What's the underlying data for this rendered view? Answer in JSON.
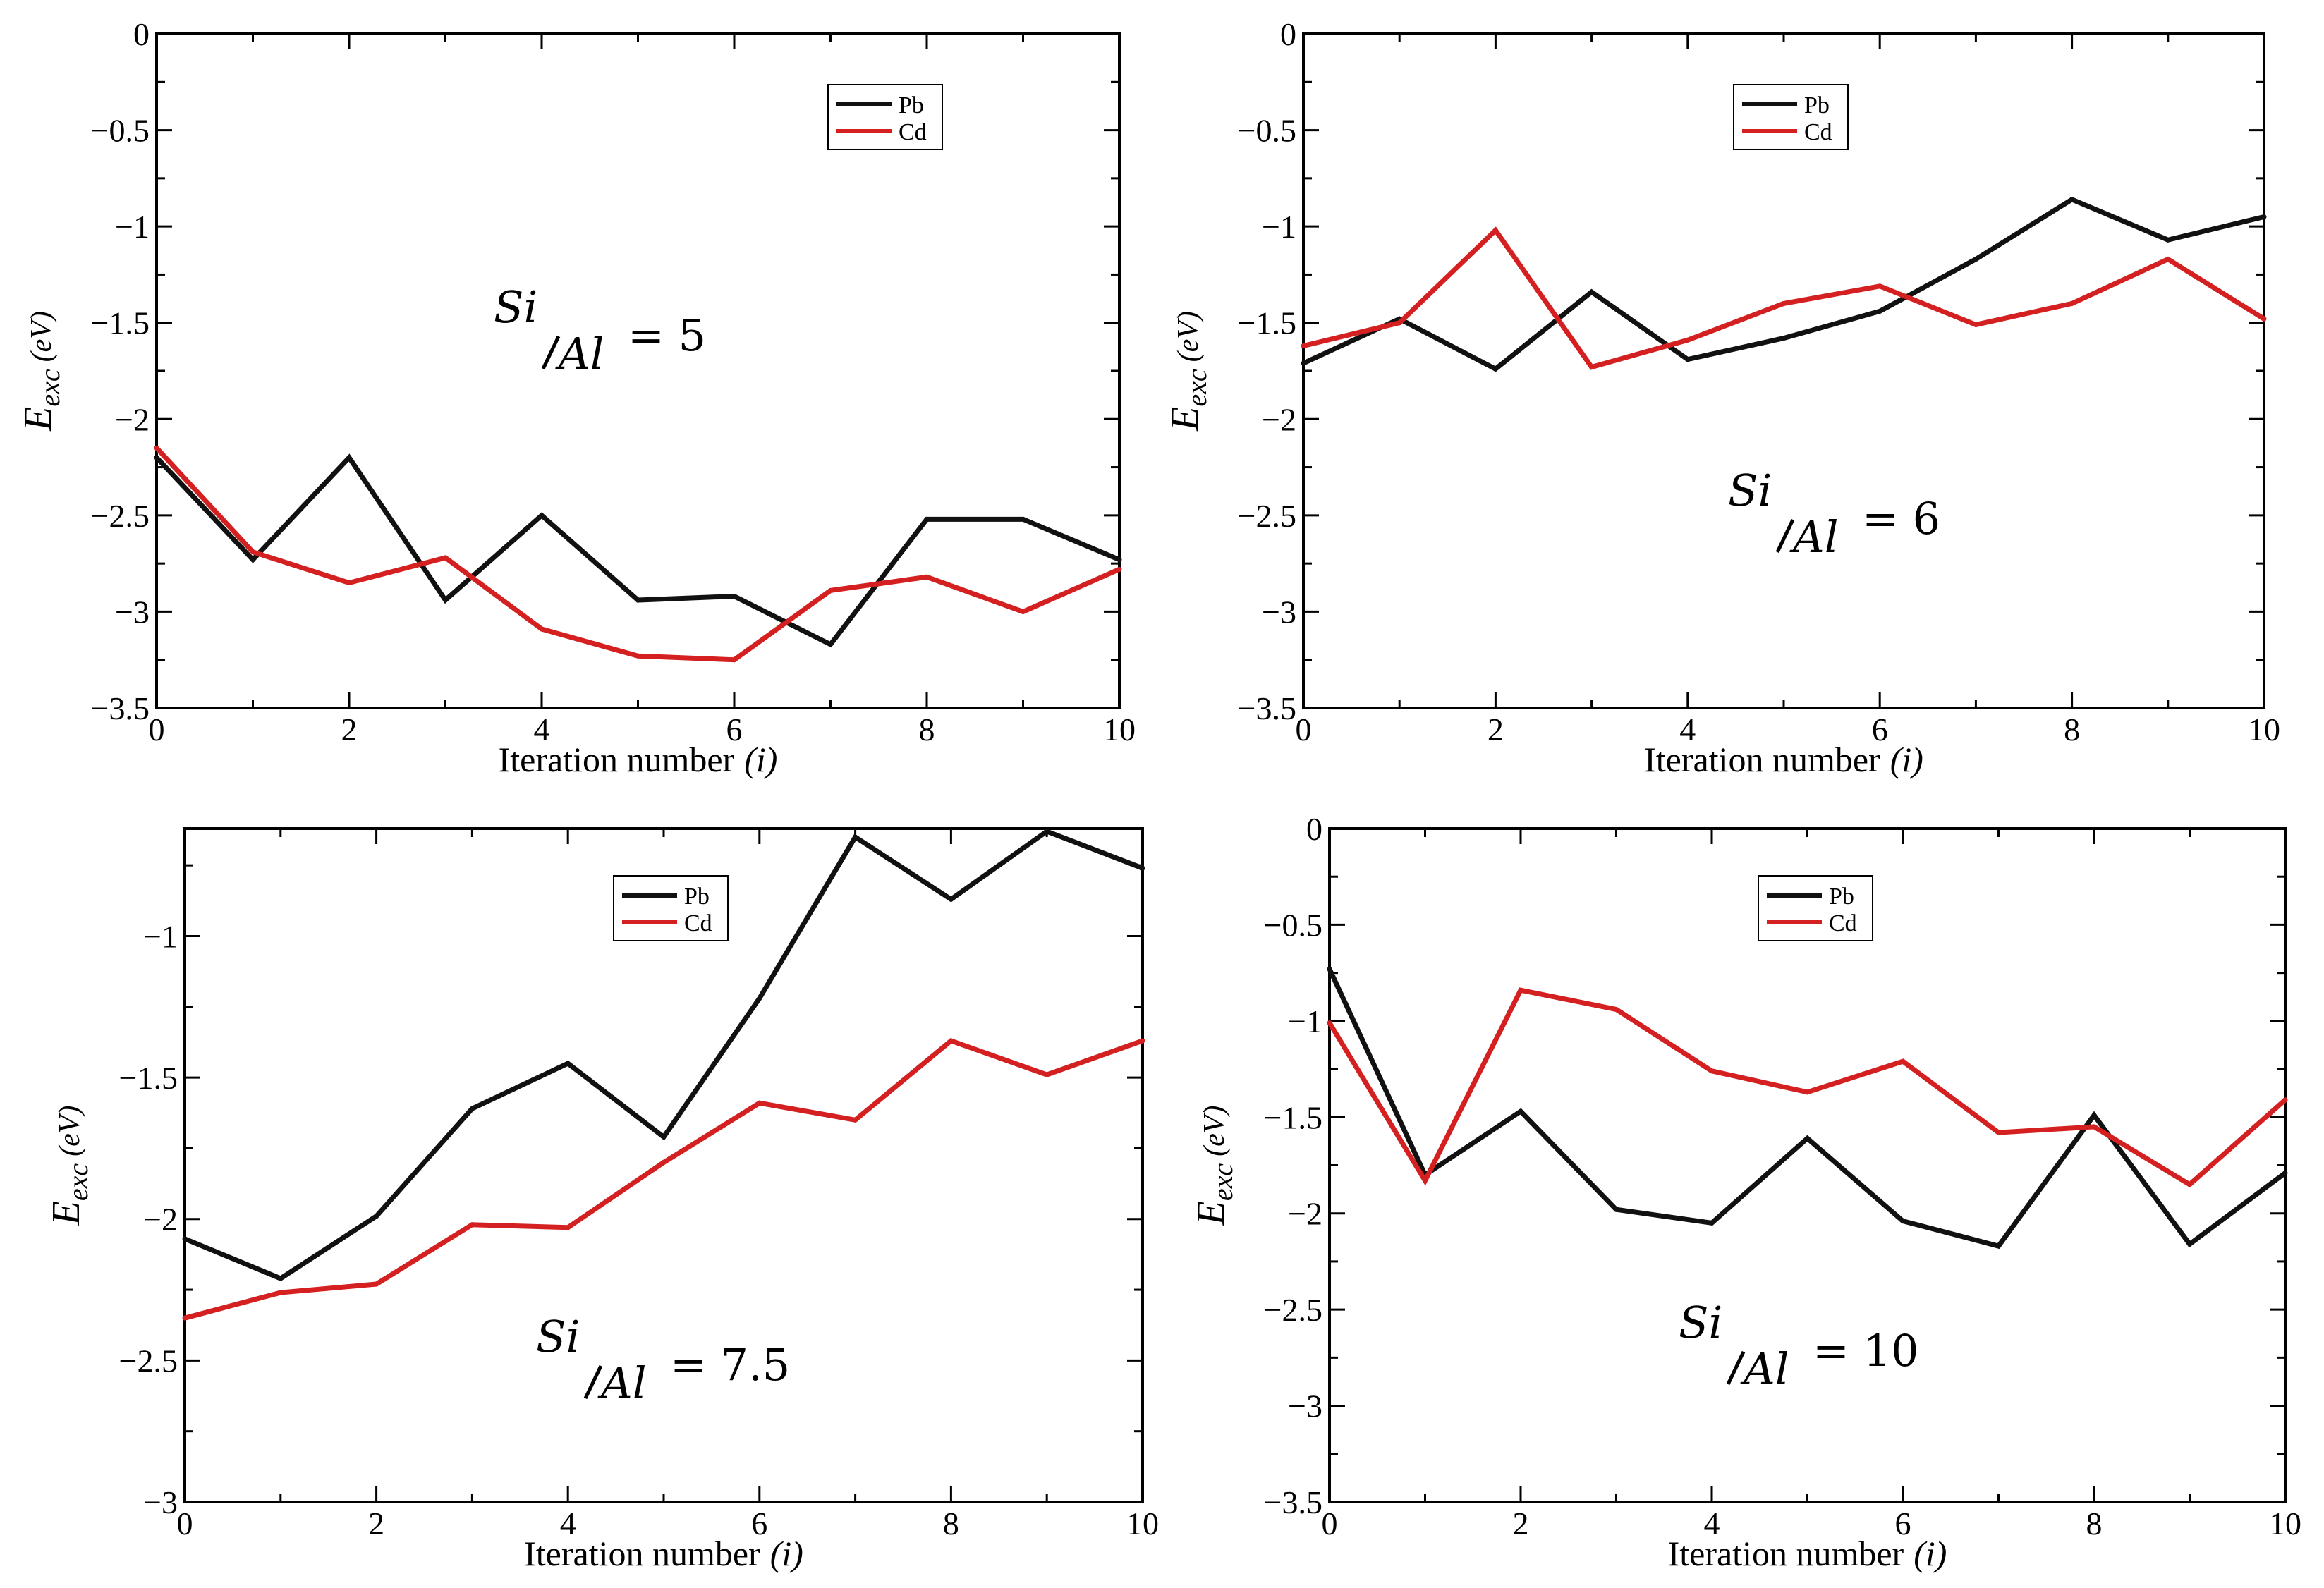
{
  "chart_data": [
    {
      "type": "line",
      "annotation": {
        "num": "Si",
        "den": "Al",
        "value": "= 5"
      },
      "xlabel": "Iteration number",
      "xlabel_var": "(i)",
      "ylabel_main": "E",
      "ylabel_sub": "exc",
      "ylabel_unit": "(eV)",
      "xlim": [
        0,
        10
      ],
      "ylim": [
        -3.5,
        0
      ],
      "xticks": [
        0,
        2,
        4,
        6,
        8,
        10
      ],
      "yticks": [
        0,
        -0.5,
        -1,
        -1.5,
        -2,
        -2.5,
        -3,
        -3.5
      ],
      "xticklabels": [
        "0",
        "2",
        "4",
        "6",
        "8",
        "10"
      ],
      "yticklabels": [
        "0",
        "−0.5",
        "−1",
        "−1.5",
        "−2",
        "−2.5",
        "−3",
        "−3.5"
      ],
      "legend_position": "top-right",
      "x": [
        0,
        1,
        2,
        3,
        4,
        5,
        6,
        7,
        8,
        9,
        10
      ],
      "series": [
        {
          "name": "Pb",
          "color": "#111111",
          "values": [
            -2.2,
            -2.73,
            -2.2,
            -2.94,
            -2.5,
            -2.94,
            -2.92,
            -3.17,
            -2.52,
            -2.52,
            -2.73
          ]
        },
        {
          "name": "Cd",
          "color": "#d42020",
          "values": [
            -2.15,
            -2.69,
            -2.85,
            -2.72,
            -3.09,
            -3.23,
            -3.25,
            -2.89,
            -2.82,
            -3.0,
            -2.78
          ]
        }
      ]
    },
    {
      "type": "line",
      "annotation": {
        "num": "Si",
        "den": "Al",
        "value": "= 6"
      },
      "xlabel": "Iteration number",
      "xlabel_var": "(i)",
      "ylabel_main": "E",
      "ylabel_sub": "exc",
      "ylabel_unit": "(eV)",
      "xlim": [
        0,
        10
      ],
      "ylim": [
        -3.5,
        0
      ],
      "xticks": [
        0,
        2,
        4,
        6,
        8,
        10
      ],
      "yticks": [
        0,
        -0.5,
        -1,
        -1.5,
        -2,
        -2.5,
        -3,
        -3.5
      ],
      "xticklabels": [
        "0",
        "2",
        "4",
        "6",
        "8",
        "10"
      ],
      "yticklabels": [
        "0",
        "−0.5",
        "−1",
        "−1.5",
        "−2",
        "−2.5",
        "−3",
        "−3.5"
      ],
      "legend_position": "top-right",
      "x": [
        0,
        1,
        2,
        3,
        4,
        5,
        6,
        7,
        8,
        9,
        10
      ],
      "series": [
        {
          "name": "Pb",
          "color": "#111111",
          "values": [
            -1.71,
            -1.48,
            -1.74,
            -1.34,
            -1.69,
            -1.58,
            -1.44,
            -1.17,
            -0.86,
            -1.07,
            -0.95
          ]
        },
        {
          "name": "Cd",
          "color": "#d42020",
          "values": [
            -1.62,
            -1.5,
            -1.02,
            -1.73,
            -1.59,
            -1.4,
            -1.31,
            -1.51,
            -1.4,
            -1.17,
            -1.48
          ]
        }
      ]
    },
    {
      "type": "line",
      "annotation": {
        "num": "Si",
        "den": "Al",
        "value": "= 7.5"
      },
      "xlabel": "Iteration number",
      "xlabel_var": "(i)",
      "ylabel_main": "E",
      "ylabel_sub": "exc",
      "ylabel_unit": "(eV)",
      "xlim": [
        0,
        10
      ],
      "ylim": [
        -3,
        -0.62
      ],
      "xticks": [
        0,
        2,
        4,
        6,
        8,
        10
      ],
      "yticks": [
        -1,
        -1.5,
        -2,
        -2.5,
        -3
      ],
      "xticklabels": [
        "0",
        "2",
        "4",
        "6",
        "8",
        "10"
      ],
      "yticklabels": [
        "−1",
        "−1.5",
        "−2",
        "−2.5",
        "−3"
      ],
      "legend_position": "top-right",
      "x": [
        0,
        1,
        2,
        3,
        4,
        5,
        6,
        7,
        8,
        9,
        10
      ],
      "series": [
        {
          "name": "Pb",
          "color": "#111111",
          "values": [
            -2.07,
            -2.21,
            -1.99,
            -1.61,
            -1.45,
            -1.71,
            -1.22,
            -0.65,
            -0.87,
            -0.63,
            -0.76
          ]
        },
        {
          "name": "Cd",
          "color": "#d42020",
          "values": [
            -2.35,
            -2.26,
            -2.23,
            -2.02,
            -2.03,
            -1.8,
            -1.59,
            -1.65,
            -1.37,
            -1.49,
            -1.37
          ]
        }
      ]
    },
    {
      "type": "line",
      "annotation": {
        "num": "Si",
        "den": "Al",
        "value": "= 10"
      },
      "xlabel": "Iteration number",
      "xlabel_var": "(i)",
      "ylabel_main": "E",
      "ylabel_sub": "exc",
      "ylabel_unit": "(eV)",
      "xlim": [
        0,
        10
      ],
      "ylim": [
        -3.5,
        0
      ],
      "xticks": [
        0,
        2,
        4,
        6,
        8,
        10
      ],
      "yticks": [
        0,
        -0.5,
        -1,
        -1.5,
        -2,
        -2.5,
        -3,
        -3.5
      ],
      "xticklabels": [
        "0",
        "2",
        "4",
        "6",
        "8",
        "10"
      ],
      "yticklabels": [
        "0",
        "−0.5",
        "−1",
        "−1.5",
        "−2",
        "−2.5",
        "−3",
        "−3.5"
      ],
      "legend_position": "top-right",
      "x": [
        0,
        1,
        2,
        3,
        4,
        5,
        6,
        7,
        8,
        9,
        10
      ],
      "series": [
        {
          "name": "Pb",
          "color": "#111111",
          "values": [
            -0.73,
            -1.8,
            -1.47,
            -1.98,
            -2.05,
            -1.61,
            -2.04,
            -2.17,
            -1.49,
            -2.16,
            -1.79
          ]
        },
        {
          "name": "Cd",
          "color": "#d42020",
          "values": [
            -1.01,
            -1.83,
            -0.84,
            -0.94,
            -1.26,
            -1.37,
            -1.21,
            -1.58,
            -1.55,
            -1.85,
            -1.41
          ]
        }
      ]
    }
  ]
}
